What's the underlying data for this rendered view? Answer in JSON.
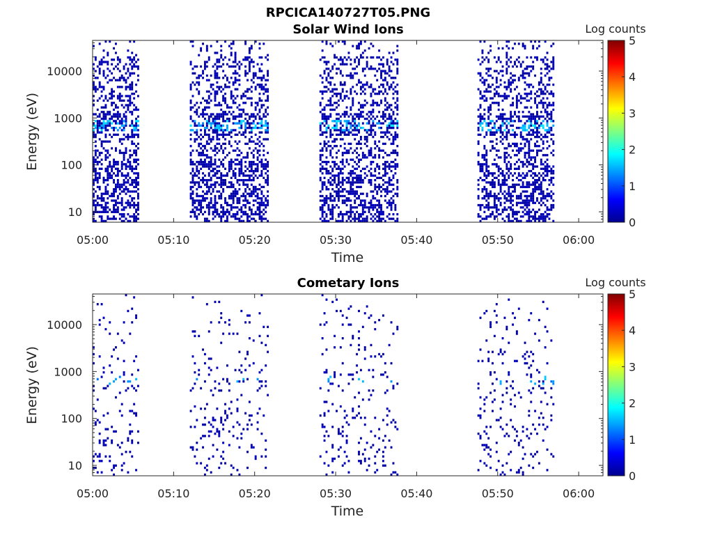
{
  "figure_title": "RPCICA140727T05.PNG",
  "chart_data": [
    {
      "type": "heatmap",
      "title": "Solar Wind Ions",
      "xlabel": "Time",
      "ylabel": "Energy (eV)",
      "colorbar_label": "Log counts",
      "x_ticks": [
        "05:00",
        "05:10",
        "05:20",
        "05:30",
        "05:40",
        "05:50",
        "06:00"
      ],
      "x_range_minutes": [
        0,
        63
      ],
      "y_ticks": [
        10,
        100,
        1000,
        10000
      ],
      "y_ticklabels": [
        "10",
        "100",
        "1000",
        "10000"
      ],
      "y_range": [
        6,
        45000
      ],
      "y_scale": "log",
      "colorbar_ticks": [
        "0",
        "1",
        "2",
        "3",
        "4",
        "5"
      ],
      "colorbar_range": [
        0,
        5
      ],
      "colormap": "jet",
      "grid": false,
      "data_intervals_minutes": [
        [
          0,
          5.6
        ],
        [
          12,
          21.6
        ],
        [
          28,
          37.6
        ],
        [
          47.5,
          57
        ]
      ],
      "peak_energy_eV": 700,
      "peak_log_counts": 1.8,
      "detection_density": 0.3,
      "seed": 17
    },
    {
      "type": "heatmap",
      "title": "Cometary Ions",
      "xlabel": "Time",
      "ylabel": "Energy (eV)",
      "colorbar_label": "Log counts",
      "x_ticks": [
        "05:00",
        "05:10",
        "05:20",
        "05:30",
        "05:40",
        "05:50",
        "06:00"
      ],
      "x_range_minutes": [
        0,
        63
      ],
      "y_ticks": [
        10,
        100,
        1000,
        10000
      ],
      "y_ticklabels": [
        "10",
        "100",
        "1000",
        "10000"
      ],
      "y_range": [
        6,
        45000
      ],
      "y_scale": "log",
      "colorbar_ticks": [
        "0",
        "1",
        "2",
        "3",
        "4",
        "5"
      ],
      "colorbar_range": [
        0,
        5
      ],
      "colormap": "jet",
      "grid": false,
      "data_intervals_minutes": [
        [
          0,
          5.6
        ],
        [
          12,
          21.6
        ],
        [
          28,
          37.6
        ],
        [
          47.5,
          57
        ]
      ],
      "peak_energy_eV": 650,
      "peak_log_counts": 1.6,
      "detection_density": 0.06,
      "seed": 91
    }
  ]
}
